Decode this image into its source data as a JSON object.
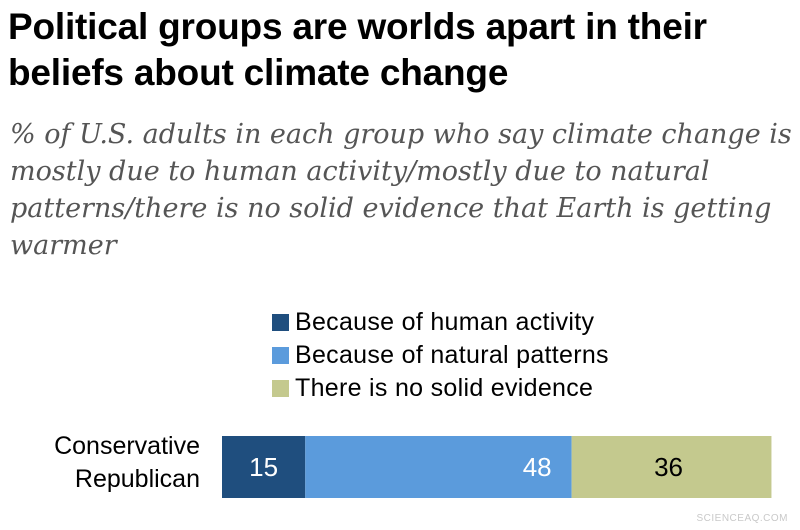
{
  "chart_data": {
    "type": "bar",
    "orientation": "horizontal",
    "stacked": true,
    "title": "Political groups are worlds apart in their beliefs about climate change",
    "subtitle": "% of U.S. adults in each group who say climate change is mostly due to human activity/mostly due to natural patterns/there is no solid evidence that Earth is getting warmer",
    "categories": [
      "Conservative Republican"
    ],
    "series": [
      {
        "name": "Because of human activity",
        "color": "#1f4e7e",
        "values": [
          15
        ]
      },
      {
        "name": "Because of natural patterns",
        "color": "#5b9bdc",
        "values": [
          48
        ]
      },
      {
        "name": "There is no solid evidence",
        "color": "#c4c98e",
        "values": [
          36
        ]
      }
    ],
    "legend_position": "top",
    "grid": false
  },
  "row_labels": [
    "Conservative",
    "Republican"
  ],
  "watermark": "SCIENCEAQ.COM"
}
